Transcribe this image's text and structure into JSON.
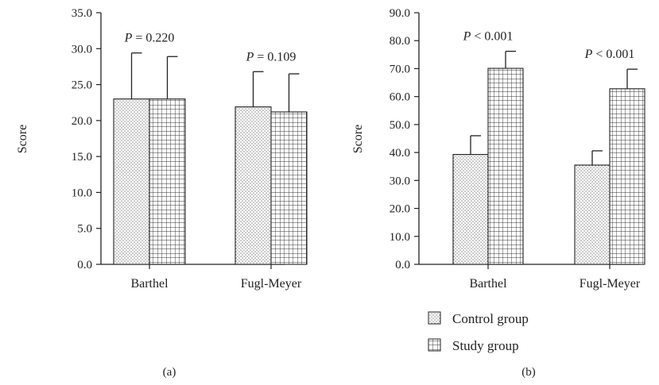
{
  "chart_data": [
    {
      "type": "bar",
      "panel_label": "(a)",
      "ylabel": "Score",
      "xlabel": "",
      "ylim": [
        0,
        35
      ],
      "yticks": [
        "0.0",
        "5.0",
        "10.0",
        "15.0",
        "20.0",
        "25.0",
        "30.0",
        "35.0"
      ],
      "categories": [
        "Barthel",
        "Fugl-Meyer"
      ],
      "series": [
        {
          "name": "Control group",
          "values": [
            23.0,
            21.9
          ],
          "error": [
            6.4,
            4.9
          ]
        },
        {
          "name": "Study group",
          "values": [
            23.0,
            21.2
          ],
          "error": [
            5.9,
            5.3
          ]
        }
      ],
      "annotations": [
        {
          "category": "Barthel",
          "prefix": "P",
          "text": " = 0.220"
        },
        {
          "category": "Fugl-Meyer",
          "prefix": "P",
          "text": " = 0.109"
        }
      ]
    },
    {
      "type": "bar",
      "panel_label": "(b)",
      "ylabel": "Score",
      "xlabel": "",
      "ylim": [
        0,
        90
      ],
      "yticks": [
        "0.0",
        "10.0",
        "20.0",
        "30.0",
        "40.0",
        "50.0",
        "60.0",
        "70.0",
        "80.0",
        "90.0"
      ],
      "categories": [
        "Barthel",
        "Fugl-Meyer"
      ],
      "series": [
        {
          "name": "Control group",
          "values": [
            39.3,
            35.5
          ],
          "error": [
            6.7,
            5.1
          ]
        },
        {
          "name": "Study group",
          "values": [
            70.1,
            62.8
          ],
          "error": [
            6.1,
            7.0
          ]
        }
      ],
      "annotations": [
        {
          "category": "Barthel",
          "prefix": "P",
          "text": " < 0.001"
        },
        {
          "category": "Fugl-Meyer",
          "prefix": "P",
          "text": " < 0.001"
        }
      ]
    }
  ],
  "legend": {
    "items": [
      {
        "label": "Control group",
        "pattern": "dots"
      },
      {
        "label": "Study group",
        "pattern": "grid"
      }
    ]
  }
}
